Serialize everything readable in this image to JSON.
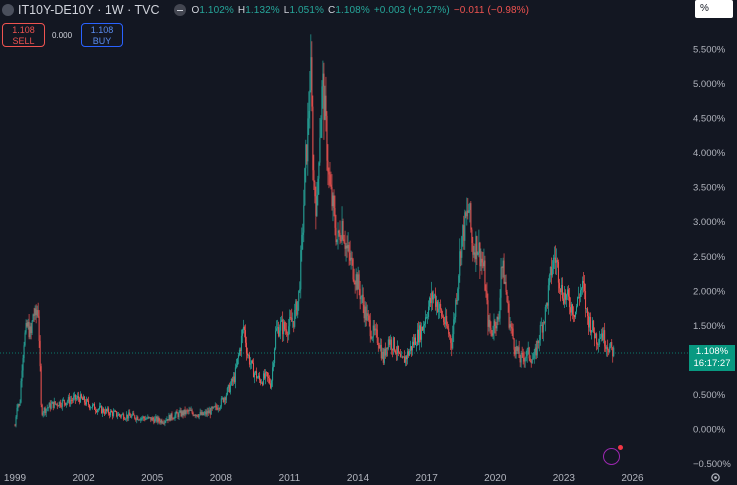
{
  "header": {
    "symbol": "IT10Y-DE10Y · 1W · TVC",
    "ohlc": {
      "o_label": "O",
      "o": "1.102%",
      "h_label": "H",
      "h": "1.132%",
      "l_label": "L",
      "l": "1.051%",
      "c_label": "C",
      "c": "1.108%",
      "change": "+0.003 (+0.27%)",
      "change2": "−0.011 (−0.98%)"
    },
    "scale_button": "%"
  },
  "trade": {
    "sell_price": "1.108",
    "sell_label": "SELL",
    "spread": "0.000",
    "buy_price": "1.108",
    "buy_label": "BUY"
  },
  "price_tag": {
    "price": "1.108%",
    "countdown": "16:17:27"
  },
  "colors": {
    "background": "#131722",
    "up": "#26a69a",
    "down": "#ef5350",
    "price_line": "#089981"
  },
  "chart_data": {
    "type": "candlestick",
    "x_ticks": [
      "1999",
      "2002",
      "2005",
      "2008",
      "2011",
      "2014",
      "2017",
      "2020",
      "2023",
      "2026"
    ],
    "y_ticks": [
      "5.500%",
      "5.000%",
      "4.500%",
      "4.000%",
      "3.500%",
      "3.000%",
      "2.500%",
      "2.000%",
      "1.500%",
      "1.000%",
      "0.500%",
      "0.000%",
      "−0.500%"
    ],
    "ylim": [
      -0.5,
      5.6
    ],
    "last_value": 1.108,
    "series": [
      {
        "x": 1999.0,
        "y": 0.05
      },
      {
        "x": 1999.1,
        "y": 0.4
      },
      {
        "x": 1999.2,
        "y": 0.3
      },
      {
        "x": 1999.3,
        "y": 0.9
      },
      {
        "x": 1999.4,
        "y": 1.3
      },
      {
        "x": 1999.55,
        "y": 1.5
      },
      {
        "x": 1999.7,
        "y": 1.35
      },
      {
        "x": 1999.8,
        "y": 1.7
      },
      {
        "x": 1999.9,
        "y": 1.6
      },
      {
        "x": 2000.0,
        "y": 1.8
      },
      {
        "x": 2000.05,
        "y": 1.4
      },
      {
        "x": 2000.15,
        "y": 0.25
      },
      {
        "x": 2000.6,
        "y": 0.35
      },
      {
        "x": 2001.2,
        "y": 0.4
      },
      {
        "x": 2001.8,
        "y": 0.45
      },
      {
        "x": 2002.4,
        "y": 0.32
      },
      {
        "x": 2003.0,
        "y": 0.25
      },
      {
        "x": 2003.6,
        "y": 0.2
      },
      {
        "x": 2004.2,
        "y": 0.18
      },
      {
        "x": 2004.8,
        "y": 0.15
      },
      {
        "x": 2005.4,
        "y": 0.12
      },
      {
        "x": 2006.0,
        "y": 0.2
      },
      {
        "x": 2006.6,
        "y": 0.25
      },
      {
        "x": 2007.2,
        "y": 0.2
      },
      {
        "x": 2007.7,
        "y": 0.28
      },
      {
        "x": 2008.0,
        "y": 0.38
      },
      {
        "x": 2008.3,
        "y": 0.55
      },
      {
        "x": 2008.6,
        "y": 0.75
      },
      {
        "x": 2008.85,
        "y": 1.2
      },
      {
        "x": 2009.0,
        "y": 1.5
      },
      {
        "x": 2009.15,
        "y": 1.1
      },
      {
        "x": 2009.4,
        "y": 0.85
      },
      {
        "x": 2009.7,
        "y": 0.7
      },
      {
        "x": 2010.0,
        "y": 0.75
      },
      {
        "x": 2010.2,
        "y": 0.65
      },
      {
        "x": 2010.4,
        "y": 1.4
      },
      {
        "x": 2010.6,
        "y": 1.5
      },
      {
        "x": 2010.8,
        "y": 1.45
      },
      {
        "x": 2011.0,
        "y": 1.5
      },
      {
        "x": 2011.2,
        "y": 1.6
      },
      {
        "x": 2011.4,
        "y": 1.9
      },
      {
        "x": 2011.55,
        "y": 2.7
      },
      {
        "x": 2011.7,
        "y": 3.8
      },
      {
        "x": 2011.8,
        "y": 4.3
      },
      {
        "x": 2011.92,
        "y": 5.3
      },
      {
        "x": 2012.05,
        "y": 3.6
      },
      {
        "x": 2012.2,
        "y": 3.2
      },
      {
        "x": 2012.3,
        "y": 4.2
      },
      {
        "x": 2012.45,
        "y": 5.0
      },
      {
        "x": 2012.6,
        "y": 4.3
      },
      {
        "x": 2012.75,
        "y": 3.5
      },
      {
        "x": 2012.9,
        "y": 3.2
      },
      {
        "x": 2013.1,
        "y": 2.7
      },
      {
        "x": 2013.3,
        "y": 3.0
      },
      {
        "x": 2013.5,
        "y": 2.6
      },
      {
        "x": 2013.8,
        "y": 2.3
      },
      {
        "x": 2014.0,
        "y": 2.1
      },
      {
        "x": 2014.3,
        "y": 1.7
      },
      {
        "x": 2014.6,
        "y": 1.4
      },
      {
        "x": 2014.9,
        "y": 1.3
      },
      {
        "x": 2015.1,
        "y": 1.0
      },
      {
        "x": 2015.3,
        "y": 1.3
      },
      {
        "x": 2015.6,
        "y": 1.2
      },
      {
        "x": 2015.9,
        "y": 0.95
      },
      {
        "x": 2016.2,
        "y": 1.1
      },
      {
        "x": 2016.5,
        "y": 1.3
      },
      {
        "x": 2016.8,
        "y": 1.45
      },
      {
        "x": 2017.0,
        "y": 1.7
      },
      {
        "x": 2017.3,
        "y": 1.95
      },
      {
        "x": 2017.6,
        "y": 1.7
      },
      {
        "x": 2017.9,
        "y": 1.45
      },
      {
        "x": 2018.1,
        "y": 1.25
      },
      {
        "x": 2018.35,
        "y": 2.1
      },
      {
        "x": 2018.5,
        "y": 2.7
      },
      {
        "x": 2018.7,
        "y": 3.0
      },
      {
        "x": 2018.85,
        "y": 3.2
      },
      {
        "x": 2019.0,
        "y": 2.6
      },
      {
        "x": 2019.2,
        "y": 2.7
      },
      {
        "x": 2019.35,
        "y": 2.5
      },
      {
        "x": 2019.5,
        "y": 2.3
      },
      {
        "x": 2019.7,
        "y": 1.5
      },
      {
        "x": 2019.85,
        "y": 1.4
      },
      {
        "x": 2020.0,
        "y": 1.6
      },
      {
        "x": 2020.15,
        "y": 1.5
      },
      {
        "x": 2020.25,
        "y": 2.4
      },
      {
        "x": 2020.4,
        "y": 2.2
      },
      {
        "x": 2020.6,
        "y": 1.6
      },
      {
        "x": 2020.85,
        "y": 1.2
      },
      {
        "x": 2021.1,
        "y": 1.0
      },
      {
        "x": 2021.4,
        "y": 1.1
      },
      {
        "x": 2021.7,
        "y": 1.0
      },
      {
        "x": 2021.95,
        "y": 1.4
      },
      {
        "x": 2022.2,
        "y": 1.7
      },
      {
        "x": 2022.45,
        "y": 2.3
      },
      {
        "x": 2022.6,
        "y": 2.5
      },
      {
        "x": 2022.75,
        "y": 2.3
      },
      {
        "x": 2022.9,
        "y": 2.0
      },
      {
        "x": 2023.1,
        "y": 1.9
      },
      {
        "x": 2023.3,
        "y": 1.8
      },
      {
        "x": 2023.5,
        "y": 1.7
      },
      {
        "x": 2023.7,
        "y": 2.0
      },
      {
        "x": 2023.85,
        "y": 2.05
      },
      {
        "x": 2024.0,
        "y": 1.65
      },
      {
        "x": 2024.2,
        "y": 1.5
      },
      {
        "x": 2024.45,
        "y": 1.3
      },
      {
        "x": 2024.65,
        "y": 1.4
      },
      {
        "x": 2024.85,
        "y": 1.25
      },
      {
        "x": 2025.05,
        "y": 1.15
      },
      {
        "x": 2025.2,
        "y": 1.108
      }
    ]
  }
}
